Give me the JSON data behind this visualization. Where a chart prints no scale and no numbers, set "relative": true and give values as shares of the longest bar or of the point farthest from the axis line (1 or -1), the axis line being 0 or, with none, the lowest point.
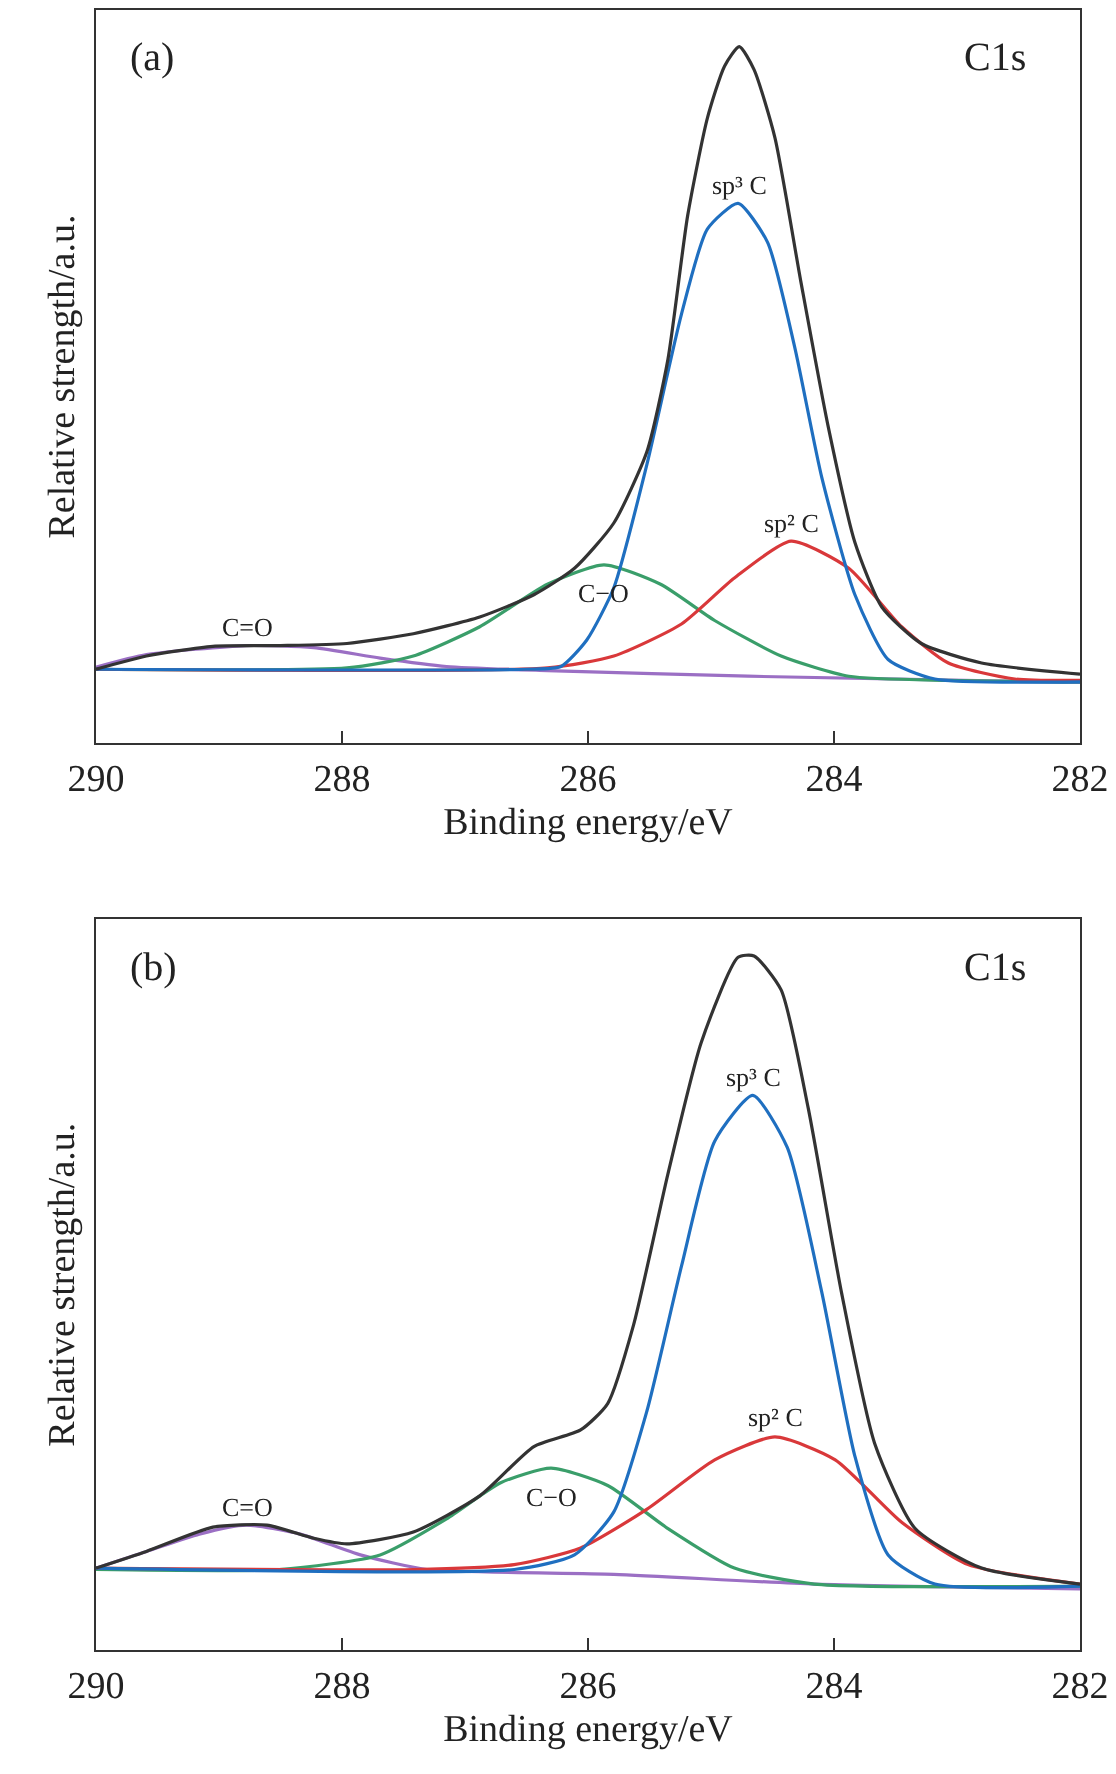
{
  "chart_data": [
    {
      "type": "line",
      "relative": true,
      "xlabel": "Binding energy/eV",
      "ylabel": "Relative strength/a.u.",
      "xlim": [
        290,
        282
      ],
      "xticks": [
        290,
        288,
        286,
        284,
        282
      ],
      "marker": "none",
      "line_style": "solid",
      "tick_labels": "x",
      "annotations": [
        "(a)",
        "C1s"
      ],
      "series": [
        {
          "name": "C=O",
          "color": "#9b6fc4",
          "x": [
            290,
            289.59,
            288.78,
            288.23,
            287.69,
            287.15,
            286.33,
            284.7,
            282
          ],
          "values": [
            0.109,
            0.127,
            0.14,
            0.137,
            0.122,
            0.11,
            0.104,
            0.096,
            0.087
          ]
        },
        {
          "name": "C−O",
          "color": "#3a9e6a",
          "x": [
            290,
            287.96,
            287.42,
            286.88,
            286.33,
            285.87,
            285.41,
            284.97,
            284.43,
            283.88,
            283.07,
            282
          ],
          "values": [
            0.106,
            0.108,
            0.125,
            0.167,
            0.228,
            0.256,
            0.228,
            0.176,
            0.125,
            0.096,
            0.09,
            0.088
          ]
        },
        {
          "name": "sp² C",
          "color": "#d9383a",
          "x": [
            290,
            286.33,
            285.79,
            285.24,
            284.81,
            284.35,
            283.88,
            283.45,
            283.07,
            282.53,
            282
          ],
          "values": [
            0.106,
            0.108,
            0.125,
            0.171,
            0.237,
            0.29,
            0.251,
            0.167,
            0.115,
            0.092,
            0.09
          ]
        },
        {
          "name": "sp³ C",
          "color": "#1f6fc0",
          "x": [
            290,
            286.5,
            286.22,
            286.01,
            285.79,
            285.52,
            285.24,
            285.03,
            284.78,
            284.54,
            284.32,
            284.1,
            283.83,
            283.56,
            283.18,
            282
          ],
          "values": [
            0.106,
            0.106,
            0.11,
            0.148,
            0.223,
            0.401,
            0.616,
            0.738,
            0.775,
            0.719,
            0.569,
            0.382,
            0.213,
            0.12,
            0.092,
            0.088
          ]
        },
        {
          "color": "#333333",
          "x": [
            290,
            289.59,
            289.05,
            288.5,
            287.96,
            287.42,
            286.88,
            286.44,
            286.11,
            285.79,
            285.52,
            285.35,
            285.19,
            285.03,
            284.89,
            284.77,
            284.65,
            284.48,
            284.27,
            284.05,
            283.83,
            283.61,
            283.29,
            282.8,
            282
          ],
          "values": [
            0.106,
            0.125,
            0.139,
            0.14,
            0.143,
            0.157,
            0.181,
            0.213,
            0.251,
            0.316,
            0.419,
            0.551,
            0.757,
            0.897,
            0.972,
            1.0,
            0.967,
            0.869,
            0.663,
            0.457,
            0.288,
            0.195,
            0.143,
            0.115,
            0.099
          ]
        }
      ]
    },
    {
      "type": "line",
      "relative": true,
      "xlabel": "Binding energy/eV",
      "ylabel": "Relative strength/a.u.",
      "xlim": [
        290,
        282
      ],
      "xticks": [
        290,
        288,
        286,
        284,
        282
      ],
      "marker": "none",
      "line_style": "solid",
      "tick_labels": "x",
      "annotations": [
        "(b)",
        "C1s"
      ],
      "series": [
        {
          "name": "C=O",
          "color": "#9b6fc4",
          "x": [
            290,
            289.59,
            289.16,
            288.78,
            288.34,
            287.85,
            287.31,
            285.79,
            284.16,
            282
          ],
          "values": [
            0.118,
            0.142,
            0.167,
            0.18,
            0.167,
            0.137,
            0.116,
            0.109,
            0.095,
            0.088
          ]
        },
        {
          "name": "C−O",
          "color": "#3a9e6a",
          "x": [
            290,
            288.51,
            287.69,
            287.15,
            286.71,
            286.3,
            285.84,
            285.35,
            284.81,
            284.16,
            282
          ],
          "values": [
            0.116,
            0.116,
            0.137,
            0.189,
            0.241,
            0.262,
            0.237,
            0.175,
            0.118,
            0.095,
            0.092
          ]
        },
        {
          "name": "sp² C",
          "color": "#d9383a",
          "x": [
            290,
            287.42,
            286.6,
            286.06,
            285.52,
            284.97,
            284.48,
            283.99,
            283.45,
            282.91,
            282
          ],
          "values": [
            0.118,
            0.116,
            0.123,
            0.147,
            0.203,
            0.274,
            0.307,
            0.274,
            0.184,
            0.123,
            0.095
          ]
        },
        {
          "name": "sp³ C",
          "color": "#1f6fc0",
          "x": [
            290,
            286.6,
            286.11,
            285.79,
            285.52,
            285.24,
            284.97,
            284.66,
            284.38,
            284.1,
            283.83,
            283.56,
            283.18,
            282
          ],
          "values": [
            0.118,
            0.116,
            0.137,
            0.199,
            0.345,
            0.553,
            0.733,
            0.799,
            0.724,
            0.516,
            0.279,
            0.137,
            0.095,
            0.092
          ]
        },
        {
          "color": "#333333",
          "x": [
            290,
            289.59,
            289.05,
            288.61,
            288.23,
            287.96,
            287.42,
            286.88,
            286.44,
            286.06,
            285.84,
            285.63,
            285.35,
            285.08,
            284.78,
            284.65,
            284.43,
            284.21,
            283.94,
            283.67,
            283.34,
            282.8,
            282
          ],
          "values": [
            0.118,
            0.142,
            0.177,
            0.18,
            0.161,
            0.153,
            0.17,
            0.222,
            0.293,
            0.317,
            0.355,
            0.468,
            0.686,
            0.875,
            0.998,
            1.0,
            0.951,
            0.781,
            0.516,
            0.298,
            0.175,
            0.118,
            0.095
          ]
        }
      ]
    }
  ]
}
